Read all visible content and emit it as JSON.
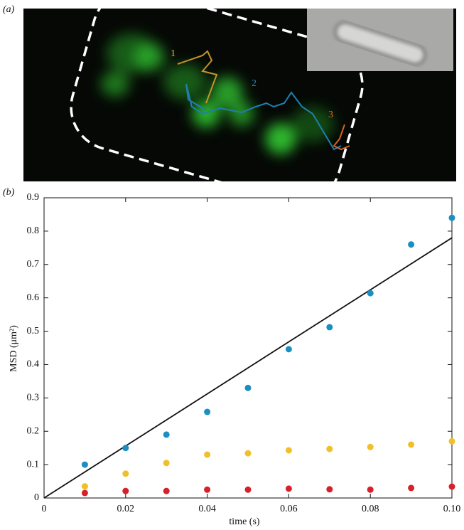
{
  "image": {
    "panel_label": "(a)",
    "track_labels": [
      "1",
      "2",
      "3"
    ]
  },
  "chart_data": {
    "type": "scatter",
    "panel_label": "(b)",
    "xlabel": "time (s)",
    "ylabel": "MSD (μm²)",
    "x": [
      0.01,
      0.02,
      0.03,
      0.04,
      0.05,
      0.06,
      0.07,
      0.08,
      0.09,
      0.1
    ],
    "series": [
      {
        "color": "#1b8fc2",
        "values": [
          0.1,
          0.15,
          0.19,
          0.258,
          0.33,
          0.446,
          0.512,
          0.614,
          0.76,
          0.84
        ]
      },
      {
        "color": "#f0c02a",
        "values": [
          0.035,
          0.073,
          0.105,
          0.13,
          0.134,
          0.143,
          0.147,
          0.153,
          0.16,
          0.17
        ]
      },
      {
        "color": "#d8202a",
        "values": [
          0.015,
          0.021,
          0.021,
          0.025,
          0.025,
          0.028,
          0.026,
          0.025,
          0.03,
          0.034
        ]
      }
    ],
    "fit": {
      "color": "#111111",
      "x": [
        0,
        0.1
      ],
      "values": [
        0,
        0.78
      ]
    },
    "xlim": [
      0,
      0.1
    ],
    "ylim": [
      0,
      0.9
    ],
    "xticks": [
      0,
      0.02,
      0.04,
      0.06,
      0.08,
      {
        "value": 0.1,
        "label": "0.10"
      }
    ],
    "yticks": [
      0,
      0.1,
      0.2,
      0.3,
      0.4,
      0.5,
      0.6,
      0.7,
      0.8,
      0.9
    ]
  }
}
